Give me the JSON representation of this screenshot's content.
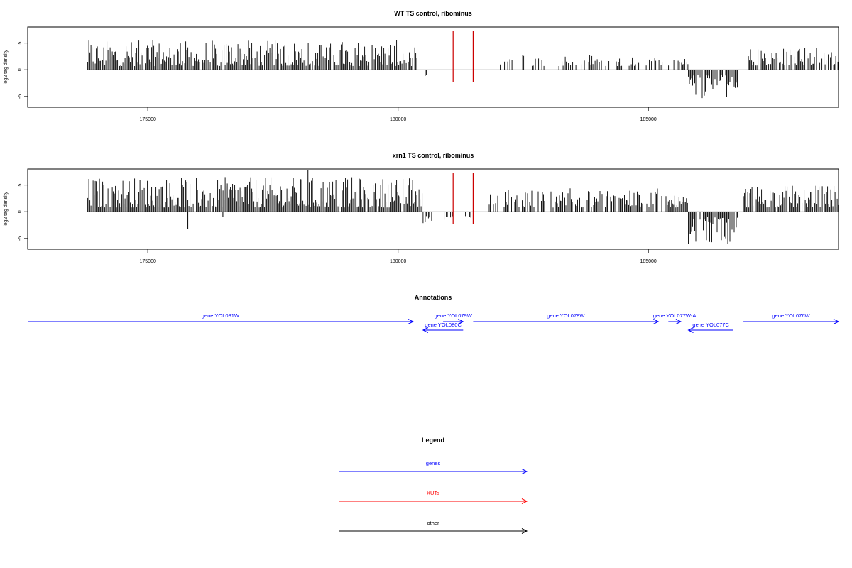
{
  "figure": {
    "annotations_title": "Annotations",
    "legend_title": "Legend"
  },
  "colors": {
    "genes": "#0000ff",
    "xuts": "#ff0000",
    "other": "#000000",
    "bars": "#000000",
    "marker": "#cc0000",
    "baseline": "#999999"
  },
  "chart_data": [
    {
      "type": "bar",
      "title": "WT TS control, ribominus",
      "xlabel": "",
      "ylabel": "log2 tag density",
      "xlim": [
        172600,
        188800
      ],
      "ylim": [
        -7,
        8
      ],
      "xticks": [
        175000,
        180000,
        185000
      ],
      "yticks": [
        -5,
        0,
        5
      ],
      "vertical_markers": [
        181100,
        181500
      ],
      "density_segments": [
        {
          "from": 173800,
          "to": 180400,
          "min": 0.7,
          "max": 5.5,
          "sign": 1,
          "density": 0.9
        },
        {
          "from": 180500,
          "to": 180700,
          "min": 0.6,
          "max": 1.2,
          "sign": -1,
          "density": 0.2
        },
        {
          "from": 181000,
          "to": 181500,
          "min": 0.8,
          "max": 2.6,
          "sign": -1,
          "density": 0.1
        },
        {
          "from": 182000,
          "to": 185600,
          "min": 0.7,
          "max": 3.0,
          "sign": 1,
          "density": 0.3
        },
        {
          "from": 185600,
          "to": 185800,
          "min": 1.0,
          "max": 3.0,
          "sign": 1,
          "density": 0.8
        },
        {
          "from": 185800,
          "to": 186800,
          "min": 1.0,
          "max": 5.5,
          "sign": -1,
          "density": 0.9
        },
        {
          "from": 187000,
          "to": 188800,
          "min": 0.8,
          "max": 4.3,
          "sign": 1,
          "density": 0.7
        }
      ]
    },
    {
      "type": "bar",
      "title": "xrn1 TS control, ribominus",
      "xlabel": "",
      "ylabel": "log2 tag density",
      "xlim": [
        172600,
        188800
      ],
      "ylim": [
        -7,
        8
      ],
      "xticks": [
        175000,
        180000,
        185000
      ],
      "yticks": [
        -5,
        0,
        5
      ],
      "vertical_markers": [
        181100,
        181500
      ],
      "density_segments": [
        {
          "from": 173800,
          "to": 180500,
          "min": 0.8,
          "max": 6.5,
          "sign": 1,
          "density": 0.95
        },
        {
          "from": 180500,
          "to": 180700,
          "min": 0.8,
          "max": 3.0,
          "sign": -1,
          "density": 0.6
        },
        {
          "from": 180900,
          "to": 181500,
          "min": 0.8,
          "max": 1.5,
          "sign": -1,
          "density": 0.2
        },
        {
          "from": 181800,
          "to": 185400,
          "min": 0.8,
          "max": 4.5,
          "sign": 1,
          "density": 0.65
        },
        {
          "from": 185400,
          "to": 185800,
          "min": 0.8,
          "max": 3.0,
          "sign": 1,
          "density": 0.9
        },
        {
          "from": 185800,
          "to": 186800,
          "min": 1.0,
          "max": 6.0,
          "sign": -1,
          "density": 0.95
        },
        {
          "from": 186900,
          "to": 188800,
          "min": 0.8,
          "max": 5.0,
          "sign": 1,
          "density": 0.95
        }
      ],
      "spikes": [
        {
          "x": 175800,
          "y": -3.2
        },
        {
          "x": 178200,
          "y": 7.8
        },
        {
          "x": 176500,
          "y": -1.0
        }
      ]
    }
  ],
  "annotations": [
    {
      "label": "gene YOL081W",
      "from": 172600,
      "to": 180300,
      "strand": "+",
      "row": 0,
      "kind": "genes"
    },
    {
      "label": "gene YOL079W",
      "from": 180900,
      "to": 181300,
      "strand": "+",
      "row": 0,
      "kind": "genes"
    },
    {
      "label": "gene YOL080C",
      "from": 180500,
      "to": 181300,
      "strand": "-",
      "row": 1,
      "kind": "genes"
    },
    {
      "label": "gene YOL078W",
      "from": 181500,
      "to": 185200,
      "strand": "+",
      "row": 0,
      "kind": "genes"
    },
    {
      "label": "gene YOL077W-A",
      "from": 185400,
      "to": 185650,
      "strand": "+",
      "row": 0,
      "kind": "genes"
    },
    {
      "label": "gene YOL077C",
      "from": 185800,
      "to": 186700,
      "strand": "-",
      "row": 1,
      "kind": "genes"
    },
    {
      "label": "gene YOL076W",
      "from": 186900,
      "to": 188800,
      "strand": "+",
      "row": 0,
      "kind": "genes"
    }
  ],
  "legend": [
    {
      "label": "genes",
      "kind": "genes"
    },
    {
      "label": "XUTs",
      "kind": "xuts"
    },
    {
      "label": "other",
      "kind": "other"
    }
  ]
}
